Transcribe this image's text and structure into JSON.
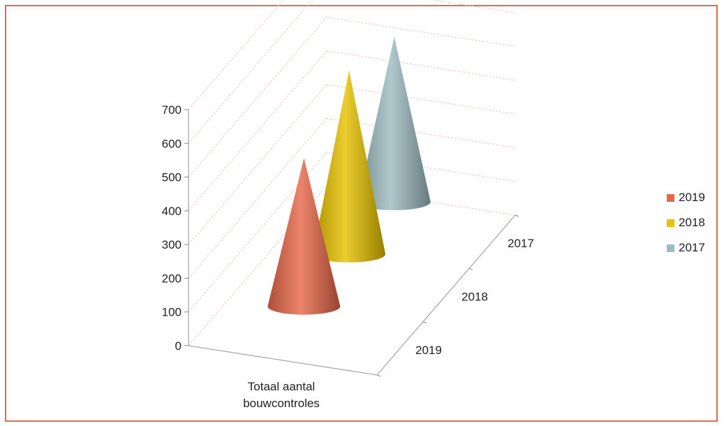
{
  "chart_data": {
    "type": "bar",
    "subtype": "3d-cone",
    "title": "",
    "categories": [
      "Totaal aantal bouwcontroles"
    ],
    "series": [
      {
        "name": "2019",
        "values": [
          440
        ],
        "color": "#e8694a"
      },
      {
        "name": "2018",
        "values": [
          545
        ],
        "color": "#e6c200"
      },
      {
        "name": "2017",
        "values": [
          490
        ],
        "color": "#9fbcc2"
      }
    ],
    "depth_labels": [
      "2019",
      "2018",
      "2017"
    ],
    "y_ticks": [
      "0",
      "100",
      "200",
      "300",
      "400",
      "500",
      "600",
      "700"
    ],
    "ylim": [
      0,
      700
    ],
    "grid": true,
    "legend_position": "right"
  }
}
